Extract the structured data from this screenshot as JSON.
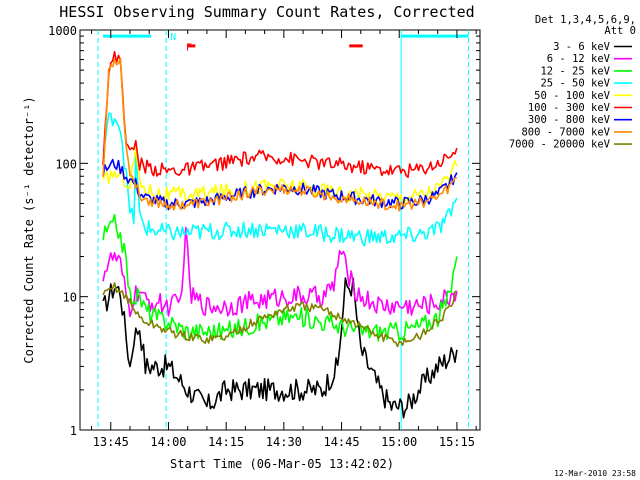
{
  "chart_data": {
    "type": "line",
    "title": "HESSI Observing Summary Count Rates, Corrected",
    "xlabel": "Start Time (06-Mar-05 13:42:02)",
    "ylabel": "Corrected Count Rate (s⁻¹ detector⁻¹)",
    "yscale": "log",
    "ylim": [
      1,
      1000
    ],
    "xlim_minutes": [
      -4.0,
      25.8
    ],
    "y_ticks": [
      "1",
      "10",
      "100",
      "1000"
    ],
    "x_ticks": [
      {
        "label": "13:45",
        "t": -15
      },
      {
        "label": "14:00",
        "t": 0
      },
      {
        "label": "14:15",
        "t": 15
      },
      {
        "label": "14:30",
        "t": 30
      },
      {
        "label": "14:45",
        "t": 45
      },
      {
        "label": "15:00",
        "t": 60
      },
      {
        "label": "15:15",
        "t": 75
      }
    ],
    "legend_header": [
      "Det 1,3,4,5,6,9,",
      "Att 0"
    ],
    "legend_position": "right",
    "series": [
      {
        "name": "3 - 6 keV",
        "color": "#000000",
        "points": [
          [
            -17,
            8
          ],
          [
            -15.5,
            10
          ],
          [
            -14,
            12
          ],
          [
            -12.5,
            11
          ],
          [
            -11,
            5
          ],
          [
            -10,
            3
          ],
          [
            -9,
            5
          ],
          [
            -7.5,
            6
          ],
          [
            -6,
            3
          ],
          [
            -3,
            3
          ],
          [
            0,
            3
          ],
          [
            5,
            2
          ],
          [
            10,
            1.5
          ],
          [
            15,
            2
          ],
          [
            20,
            2
          ],
          [
            25,
            2
          ],
          [
            30,
            2
          ],
          [
            35,
            2
          ],
          [
            40,
            2
          ],
          [
            44,
            3
          ],
          [
            46,
            12
          ],
          [
            48,
            12
          ],
          [
            50,
            4
          ],
          [
            55,
            2
          ],
          [
            58,
            1.5
          ],
          [
            62,
            1.5
          ],
          [
            65,
            2
          ],
          [
            70,
            3
          ],
          [
            73,
            3.5
          ],
          [
            75,
            4
          ]
        ]
      },
      {
        "name": "6 - 12 keV",
        "color": "#ff00ff",
        "points": [
          [
            -17,
            15
          ],
          [
            -15.5,
            18
          ],
          [
            -14,
            20
          ],
          [
            -12.5,
            17
          ],
          [
            -11,
            10
          ],
          [
            -10,
            8
          ],
          [
            -9,
            10
          ],
          [
            -7.5,
            11
          ],
          [
            -6,
            9
          ],
          [
            -3,
            9
          ],
          [
            0,
            8.5
          ],
          [
            3,
            9
          ],
          [
            4.5,
            28
          ],
          [
            6,
            10
          ],
          [
            10,
            8.5
          ],
          [
            15,
            8.5
          ],
          [
            20,
            9
          ],
          [
            25,
            9.5
          ],
          [
            30,
            10
          ],
          [
            35,
            10
          ],
          [
            40,
            10
          ],
          [
            43,
            12
          ],
          [
            44.5,
            22
          ],
          [
            46,
            17
          ],
          [
            48,
            12
          ],
          [
            50,
            10
          ],
          [
            55,
            8.5
          ],
          [
            60,
            8.5
          ],
          [
            65,
            8.5
          ],
          [
            70,
            9
          ],
          [
            73,
            10
          ],
          [
            75,
            11
          ]
        ]
      },
      {
        "name": "12 - 25 keV",
        "color": "#00ff00",
        "points": [
          [
            -17,
            28
          ],
          [
            -15.5,
            32
          ],
          [
            -14,
            35
          ],
          [
            -12.5,
            30
          ],
          [
            -11,
            18
          ],
          [
            -10,
            10
          ],
          [
            -9,
            10
          ],
          [
            -7.5,
            10
          ],
          [
            -6,
            8
          ],
          [
            -3,
            7
          ],
          [
            0,
            6.5
          ],
          [
            5,
            5.5
          ],
          [
            10,
            5.5
          ],
          [
            15,
            5.5
          ],
          [
            20,
            6
          ],
          [
            25,
            6.5
          ],
          [
            30,
            7
          ],
          [
            35,
            7
          ],
          [
            40,
            6.5
          ],
          [
            45,
            6
          ],
          [
            50,
            5.5
          ],
          [
            55,
            5.5
          ],
          [
            60,
            5.5
          ],
          [
            65,
            6
          ],
          [
            70,
            7
          ],
          [
            73,
            10
          ],
          [
            75,
            20
          ]
        ]
      },
      {
        "name": "25 - 50 keV",
        "color": "#00ffff",
        "points": [
          [
            -17,
            120
          ],
          [
            -15.5,
            210
          ],
          [
            -14,
            230
          ],
          [
            -12.5,
            190
          ],
          [
            -11,
            80
          ],
          [
            -10,
            42
          ],
          [
            -9,
            38
          ],
          [
            -8.5,
            110
          ],
          [
            -7.5,
            40
          ],
          [
            -6,
            33
          ],
          [
            -3,
            31
          ],
          [
            0,
            30
          ],
          [
            5,
            30
          ],
          [
            10,
            31
          ],
          [
            15,
            31
          ],
          [
            20,
            32
          ],
          [
            25,
            32
          ],
          [
            30,
            32
          ],
          [
            35,
            31
          ],
          [
            40,
            30
          ],
          [
            45,
            29
          ],
          [
            50,
            28
          ],
          [
            55,
            28
          ],
          [
            60,
            28
          ],
          [
            65,
            29
          ],
          [
            70,
            32
          ],
          [
            73,
            40
          ],
          [
            75,
            55
          ]
        ]
      },
      {
        "name": "50 - 100 keV",
        "color": "#ffff00",
        "points": [
          [
            -17,
            70
          ],
          [
            -15.5,
            80
          ],
          [
            -14,
            85
          ],
          [
            -12.5,
            80
          ],
          [
            -11,
            75
          ],
          [
            -10,
            70
          ],
          [
            -8.5,
            130
          ],
          [
            -7.5,
            70
          ],
          [
            -6,
            65
          ],
          [
            -3,
            60
          ],
          [
            0,
            58
          ],
          [
            5,
            58
          ],
          [
            10,
            60
          ],
          [
            15,
            62
          ],
          [
            20,
            65
          ],
          [
            25,
            68
          ],
          [
            30,
            68
          ],
          [
            35,
            66
          ],
          [
            40,
            63
          ],
          [
            45,
            60
          ],
          [
            50,
            58
          ],
          [
            55,
            57
          ],
          [
            60,
            56
          ],
          [
            65,
            58
          ],
          [
            70,
            65
          ],
          [
            73,
            80
          ],
          [
            75,
            95
          ]
        ]
      },
      {
        "name": "100 - 300 keV",
        "color": "#ff0000",
        "points": [
          [
            -17,
            110
          ],
          [
            -15.5,
            500
          ],
          [
            -14,
            620
          ],
          [
            -12.5,
            600
          ],
          [
            -11,
            150
          ],
          [
            -10,
            115
          ],
          [
            -8.5,
            140
          ],
          [
            -7.5,
            100
          ],
          [
            -6,
            95
          ],
          [
            -3,
            90
          ],
          [
            0,
            88
          ],
          [
            5,
            90
          ],
          [
            10,
            95
          ],
          [
            15,
            102
          ],
          [
            20,
            108
          ],
          [
            25,
            112
          ],
          [
            30,
            110
          ],
          [
            35,
            105
          ],
          [
            40,
            100
          ],
          [
            45,
            97
          ],
          [
            50,
            94
          ],
          [
            55,
            90
          ],
          [
            60,
            88
          ],
          [
            65,
            90
          ],
          [
            70,
            100
          ],
          [
            73,
            115
          ],
          [
            75,
            130
          ]
        ]
      },
      {
        "name": "300 - 800 keV",
        "color": "#0000ff",
        "points": [
          [
            -17,
            85
          ],
          [
            -15.5,
            95
          ],
          [
            -14,
            100
          ],
          [
            -12.5,
            92
          ],
          [
            -11,
            80
          ],
          [
            -10,
            75
          ],
          [
            -8.5,
            70
          ],
          [
            -7.5,
            60
          ],
          [
            -6,
            55
          ],
          [
            -3,
            52
          ],
          [
            0,
            50
          ],
          [
            5,
            50
          ],
          [
            10,
            52
          ],
          [
            15,
            56
          ],
          [
            20,
            60
          ],
          [
            25,
            64
          ],
          [
            30,
            66
          ],
          [
            35,
            64
          ],
          [
            40,
            60
          ],
          [
            45,
            57
          ],
          [
            50,
            54
          ],
          [
            55,
            52
          ],
          [
            60,
            50
          ],
          [
            65,
            52
          ],
          [
            70,
            58
          ],
          [
            73,
            70
          ],
          [
            75,
            85
          ]
        ]
      },
      {
        "name": "800 - 7000 keV",
        "color": "#ff8c00",
        "points": [
          [
            -17,
            80
          ],
          [
            -15.5,
            500
          ],
          [
            -14,
            600
          ],
          [
            -12.5,
            590
          ],
          [
            -11,
            130
          ],
          [
            -10,
            85
          ],
          [
            -8.5,
            70
          ],
          [
            -7.5,
            58
          ],
          [
            -6,
            54
          ],
          [
            -3,
            51
          ],
          [
            0,
            49
          ],
          [
            5,
            49
          ],
          [
            10,
            51
          ],
          [
            15,
            55
          ],
          [
            20,
            59
          ],
          [
            25,
            63
          ],
          [
            30,
            64
          ],
          [
            35,
            62
          ],
          [
            40,
            58
          ],
          [
            45,
            55
          ],
          [
            50,
            52
          ],
          [
            55,
            50
          ],
          [
            60,
            48
          ],
          [
            65,
            50
          ],
          [
            70,
            56
          ],
          [
            73,
            66
          ],
          [
            75,
            78
          ]
        ]
      },
      {
        "name": "7000 - 20000 keV",
        "color": "#808000",
        "points": [
          [
            -17,
            10
          ],
          [
            -15.5,
            11
          ],
          [
            -14,
            12
          ],
          [
            -12.5,
            11
          ],
          [
            -11,
            10
          ],
          [
            -10,
            9
          ],
          [
            -9,
            8
          ],
          [
            -7.5,
            7
          ],
          [
            -6,
            6.5
          ],
          [
            -3,
            6
          ],
          [
            0,
            5.5
          ],
          [
            5,
            5
          ],
          [
            10,
            4.8
          ],
          [
            15,
            5
          ],
          [
            20,
            6
          ],
          [
            25,
            7
          ],
          [
            30,
            8
          ],
          [
            35,
            8.5
          ],
          [
            40,
            8
          ],
          [
            45,
            7
          ],
          [
            50,
            6
          ],
          [
            55,
            5
          ],
          [
            60,
            4.5
          ],
          [
            65,
            5
          ],
          [
            70,
            6.5
          ],
          [
            73,
            8
          ],
          [
            75,
            11
          ]
        ]
      }
    ],
    "annotations": [
      {
        "type": "text",
        "label": "N",
        "t": -0.6,
        "y": 900,
        "color": "#00ffff"
      },
      {
        "type": "text",
        "label": "F",
        "t": 3.5,
        "y": 750,
        "color": "#ff0000"
      },
      {
        "type": "segment",
        "t0": 5.0,
        "t1": 7.0,
        "y": 760,
        "color": "#ff0000"
      },
      {
        "type": "segment",
        "t0": 47.0,
        "t1": 50.5,
        "y": 760,
        "color": "#ff0000"
      },
      {
        "type": "segment",
        "t0": -17,
        "t1": -4.5,
        "y": 900,
        "color": "#00ffff"
      },
      {
        "type": "segment",
        "t0": 60.5,
        "t1": 78,
        "y": 900,
        "color": "#00ffff"
      }
    ],
    "vertical_markers": [
      {
        "t": -18.3,
        "style": "dashed",
        "color": "#00ffff"
      },
      {
        "t": -0.6,
        "style": "dashed",
        "color": "#00ffff"
      },
      {
        "t": 60.5,
        "style": "solid",
        "color": "#00ffff"
      },
      {
        "t": 78.0,
        "style": "dashed",
        "color": "#00ffff"
      }
    ]
  },
  "footer": {
    "timestamp": "12-Mar-2010 23:58"
  }
}
